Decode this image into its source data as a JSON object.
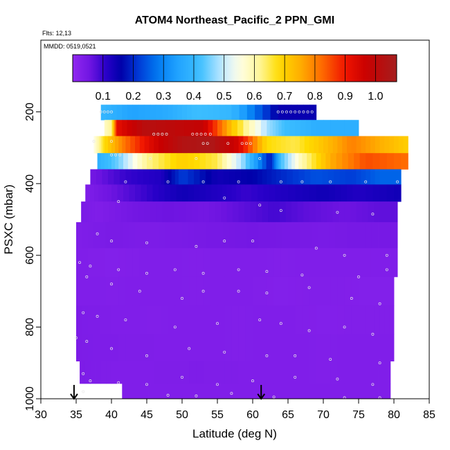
{
  "chart_data": {
    "type": "heatmap",
    "title": "ATOM4 Northeast_Pacific_2 PPN_GMI",
    "annotations": [
      "Flts: 12,13",
      "MMDD: 0519,0521"
    ],
    "xlabel": "Latitude (deg N)",
    "ylabel": "PSXC (mbar)",
    "xlim": [
      30,
      85
    ],
    "ylim": [
      1000,
      0
    ],
    "x_ticks": [
      "30",
      "35",
      "40",
      "45",
      "50",
      "55",
      "60",
      "65",
      "70",
      "75",
      "80",
      "85"
    ],
    "y_ticks": [
      "200",
      "400",
      "600",
      "800",
      "1000"
    ],
    "colorbar": {
      "range": [
        0,
        1.07
      ],
      "ticks": [
        "0.1",
        "0.2",
        "0.3",
        "0.4",
        "0.5",
        "0.6",
        "0.7",
        "0.8",
        "0.9",
        "1.0"
      ]
    },
    "arrows_latitude": [
      34.7,
      61.2
    ],
    "layers": [
      {
        "p": 200,
        "x0": 38.5,
        "x1": 69,
        "segments": [
          [
            38.5,
            0.4
          ],
          [
            43,
            0.35
          ],
          [
            48,
            0.37
          ],
          [
            52,
            0.42
          ],
          [
            57,
            0.4
          ],
          [
            63.6,
            0.15
          ],
          [
            69,
            0.15
          ]
        ]
      },
      {
        "p": 245,
        "x0": 39,
        "x1": 75,
        "segments": [
          [
            39,
            0.58
          ],
          [
            40,
            0.62
          ],
          [
            40.8,
            0.92
          ],
          [
            45,
            1.02
          ],
          [
            53,
            0.98
          ],
          [
            57,
            0.72
          ],
          [
            62,
            0.48
          ],
          [
            64.5,
            0.42
          ],
          [
            69,
            0.38
          ],
          [
            75,
            0.38
          ]
        ]
      },
      {
        "p": 290,
        "x0": 37.5,
        "x1": 82,
        "segments": [
          [
            37.5,
            0.55
          ],
          [
            39,
            0.68
          ],
          [
            42,
            0.82
          ],
          [
            46,
            0.95
          ],
          [
            50,
            1.03
          ],
          [
            54,
            1.05
          ],
          [
            58,
            0.95
          ],
          [
            62,
            0.68
          ],
          [
            66,
            0.65
          ],
          [
            70,
            0.72
          ],
          [
            74,
            0.8
          ],
          [
            78,
            0.75
          ],
          [
            82,
            0.7
          ]
        ]
      },
      {
        "p": 340,
        "x0": 38,
        "x1": 82,
        "segments": [
          [
            38,
            0.38
          ],
          [
            41,
            0.45
          ],
          [
            45,
            0.62
          ],
          [
            50,
            0.7
          ],
          [
            55,
            0.65
          ],
          [
            59,
            0.45
          ],
          [
            62.5,
            0.18
          ],
          [
            64,
            0.42
          ],
          [
            67,
            0.6
          ],
          [
            71,
            0.75
          ],
          [
            76,
            0.85
          ],
          [
            82,
            0.82
          ]
        ]
      },
      {
        "p": 380,
        "x0": 37,
        "x1": 81,
        "segments": [
          [
            37,
            0.05
          ],
          [
            42,
            0.1
          ],
          [
            47,
            0.12
          ],
          [
            50,
            0.22
          ],
          [
            55,
            0.14
          ],
          [
            60,
            0.16
          ],
          [
            64,
            0.2
          ],
          [
            69,
            0.24
          ],
          [
            74,
            0.22
          ],
          [
            78,
            0.26
          ],
          [
            81,
            0.26
          ]
        ]
      },
      {
        "p": 425,
        "x0": 36.3,
        "x1": 81,
        "segments": [
          [
            36.3,
            0.03
          ],
          [
            40,
            0.06
          ],
          [
            45,
            0.1
          ],
          [
            50,
            0.14
          ],
          [
            55,
            0.12
          ],
          [
            59,
            0.1
          ],
          [
            64,
            0.12
          ],
          [
            70,
            0.14
          ],
          [
            75,
            0.12
          ],
          [
            81,
            0.14
          ]
        ]
      },
      {
        "p": 475,
        "x0": 35.7,
        "x1": 80.5,
        "segments": [
          [
            35.7,
            0.04
          ],
          [
            38,
            0.03
          ],
          [
            43,
            0.05
          ],
          [
            48,
            0.06
          ],
          [
            53,
            0.05
          ],
          [
            58,
            0.07
          ],
          [
            63,
            0.09
          ],
          [
            68,
            0.07
          ],
          [
            73,
            0.06
          ],
          [
            78,
            0.07
          ],
          [
            80.5,
            0.07
          ]
        ]
      },
      {
        "p": 540,
        "x0": 35,
        "x1": 80.5,
        "segments": [
          [
            35,
            0.03
          ],
          [
            40,
            0.04
          ],
          [
            45,
            0.035
          ],
          [
            50,
            0.04
          ],
          [
            55,
            0.045
          ],
          [
            60,
            0.05
          ],
          [
            65,
            0.045
          ],
          [
            70,
            0.04
          ],
          [
            75,
            0.045
          ],
          [
            80.5,
            0.045
          ]
        ]
      },
      {
        "p": 620,
        "x0": 35,
        "x1": 80.5,
        "segments": [
          [
            35,
            0.03
          ],
          [
            40,
            0.025
          ],
          [
            46,
            0.03
          ],
          [
            52,
            0.028
          ],
          [
            58,
            0.03
          ],
          [
            64,
            0.028
          ],
          [
            70,
            0.03
          ],
          [
            76,
            0.03
          ],
          [
            80.5,
            0.03
          ]
        ]
      },
      {
        "p": 700,
        "x0": 35,
        "x1": 80,
        "segments": [
          [
            35,
            0.03
          ],
          [
            40,
            0.028
          ],
          [
            46,
            0.03
          ],
          [
            52,
            0.028
          ],
          [
            58,
            0.03
          ],
          [
            64,
            0.025
          ],
          [
            70,
            0.028
          ],
          [
            76,
            0.025
          ],
          [
            80,
            0.025
          ]
        ]
      },
      {
        "p": 780,
        "x0": 35,
        "x1": 80,
        "segments": [
          [
            35,
            0.035
          ],
          [
            40,
            0.03
          ],
          [
            46,
            0.028
          ],
          [
            52,
            0.03
          ],
          [
            58,
            0.028
          ],
          [
            64,
            0.03
          ],
          [
            70,
            0.025
          ],
          [
            76,
            0.028
          ],
          [
            80,
            0.028
          ]
        ]
      },
      {
        "p": 860,
        "x0": 35,
        "x1": 80,
        "segments": [
          [
            35,
            0.035
          ],
          [
            40,
            0.032
          ],
          [
            46,
            0.03
          ],
          [
            52,
            0.03
          ],
          [
            58,
            0.028
          ],
          [
            64,
            0.03
          ],
          [
            70,
            0.028
          ],
          [
            76,
            0.03
          ],
          [
            80,
            0.03
          ]
        ]
      },
      {
        "p": 930,
        "x0": 35.5,
        "x1": 79.5,
        "segments": [
          [
            35.5,
            0.035
          ],
          [
            40,
            0.03
          ],
          [
            46,
            0.03
          ],
          [
            52,
            0.032
          ],
          [
            58,
            0.03
          ],
          [
            64,
            0.03
          ],
          [
            70,
            0.028
          ],
          [
            76,
            0.03
          ],
          [
            79.5,
            0.03
          ]
        ]
      },
      {
        "p": 985,
        "x0": 41.5,
        "x1": 79.5,
        "segments": [
          [
            41.5,
            0.03
          ],
          [
            46,
            0.03
          ],
          [
            52,
            0.03
          ],
          [
            58,
            0.03
          ],
          [
            64,
            0.03
          ],
          [
            70,
            0.03
          ],
          [
            76,
            0.03
          ],
          [
            79.5,
            0.03
          ]
        ]
      }
    ],
    "points": [
      [
        38.5,
        200
      ],
      [
        39,
        200
      ],
      [
        39.5,
        200
      ],
      [
        40,
        200
      ],
      [
        63.6,
        200
      ],
      [
        64.2,
        200
      ],
      [
        64.8,
        200
      ],
      [
        65.4,
        200
      ],
      [
        66,
        200
      ],
      [
        66.6,
        200
      ],
      [
        67.2,
        200
      ],
      [
        67.8,
        200
      ],
      [
        68.4,
        200
      ],
      [
        46,
        262
      ],
      [
        46.6,
        262
      ],
      [
        47.2,
        262
      ],
      [
        47.8,
        262
      ],
      [
        51.5,
        262
      ],
      [
        52.1,
        262
      ],
      [
        52.7,
        262
      ],
      [
        53.3,
        262
      ],
      [
        54,
        262
      ],
      [
        37.5,
        282
      ],
      [
        40,
        282
      ],
      [
        53,
        288
      ],
      [
        53.6,
        288
      ],
      [
        58.5,
        288
      ],
      [
        59.1,
        288
      ],
      [
        59.7,
        288
      ],
      [
        56.5,
        288
      ],
      [
        40,
        320
      ],
      [
        40.6,
        320
      ],
      [
        41.2,
        320
      ],
      [
        45.5,
        330
      ],
      [
        52,
        330
      ],
      [
        58,
        325
      ],
      [
        61,
        330
      ],
      [
        42,
        395
      ],
      [
        48,
        395
      ],
      [
        53,
        395
      ],
      [
        58,
        395
      ],
      [
        64,
        395
      ],
      [
        67,
        395
      ],
      [
        71,
        395
      ],
      [
        76,
        395
      ],
      [
        80.5,
        395
      ],
      [
        41,
        450
      ],
      [
        56,
        440
      ],
      [
        61,
        460
      ],
      [
        64,
        475
      ],
      [
        72,
        480
      ],
      [
        77,
        485
      ],
      [
        38,
        540
      ],
      [
        40,
        560
      ],
      [
        45,
        565
      ],
      [
        52,
        575
      ],
      [
        56,
        560
      ],
      [
        60,
        560
      ],
      [
        69,
        580
      ],
      [
        73,
        600
      ],
      [
        79,
        600
      ],
      [
        35.5,
        620
      ],
      [
        37,
        630
      ],
      [
        41,
        640
      ],
      [
        45,
        650
      ],
      [
        49,
        640
      ],
      [
        53,
        650
      ],
      [
        58,
        640
      ],
      [
        62,
        645
      ],
      [
        67,
        655
      ],
      [
        75,
        660
      ],
      [
        79,
        640
      ],
      [
        36.5,
        660
      ],
      [
        40,
        680
      ],
      [
        44,
        700
      ],
      [
        50,
        720
      ],
      [
        53,
        700
      ],
      [
        58,
        700
      ],
      [
        62,
        705
      ],
      [
        68,
        690
      ],
      [
        74,
        720
      ],
      [
        78,
        735
      ],
      [
        36,
        760
      ],
      [
        38,
        770
      ],
      [
        42,
        780
      ],
      [
        49,
        800
      ],
      [
        55,
        790
      ],
      [
        61,
        780
      ],
      [
        64,
        790
      ],
      [
        68,
        810
      ],
      [
        73,
        800
      ],
      [
        77,
        820
      ],
      [
        35,
        830
      ],
      [
        36.5,
        840
      ],
      [
        40,
        860
      ],
      [
        45,
        880
      ],
      [
        51,
        860
      ],
      [
        56,
        870
      ],
      [
        62,
        880
      ],
      [
        66,
        880
      ],
      [
        71,
        890
      ],
      [
        78,
        900
      ],
      [
        36,
        930
      ],
      [
        37,
        950
      ],
      [
        41,
        955
      ],
      [
        45,
        960
      ],
      [
        50,
        940
      ],
      [
        55,
        960
      ],
      [
        60,
        950
      ],
      [
        66,
        940
      ],
      [
        72,
        945
      ],
      [
        77,
        960
      ],
      [
        36,
        980
      ],
      [
        48,
        990
      ],
      [
        52,
        992
      ],
      [
        57,
        985
      ],
      [
        63,
        995
      ],
      [
        73,
        997
      ],
      [
        78,
        997
      ]
    ]
  }
}
